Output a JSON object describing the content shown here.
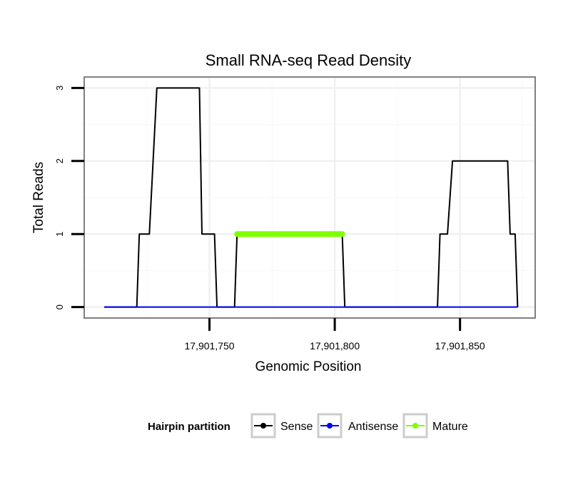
{
  "chart_data": {
    "type": "line",
    "title": "Small RNA-seq Read Density",
    "xlabel": "Genomic Position",
    "ylabel": "Total Reads",
    "xlim": [
      17901700,
      17901880
    ],
    "ylim": [
      -0.15,
      3.15
    ],
    "xticks": [
      17901750,
      17901800,
      17901850
    ],
    "xtick_labels": [
      "17,901,750",
      "17,901,800",
      "17,901,850"
    ],
    "yticks": [
      0,
      1,
      2,
      3
    ],
    "ytick_labels": [
      "0",
      "1",
      "2",
      "3"
    ],
    "grid": true,
    "legend_position": "bottom",
    "legend_title": "Hairpin partition",
    "series": [
      {
        "name": "Sense",
        "color": "#000000",
        "x": [
          17901708,
          17901721,
          17901722,
          17901726,
          17901729,
          17901746,
          17901747,
          17901752,
          17901753,
          17901760,
          17901761,
          17901803,
          17901804,
          17901841,
          17901842,
          17901845,
          17901847,
          17901869,
          17901870,
          17901872,
          17901873
        ],
        "values": [
          0,
          0,
          1,
          1,
          3,
          3,
          1,
          1,
          0,
          0,
          1,
          1,
          0,
          0,
          1,
          1,
          2,
          2,
          1,
          1,
          0
        ]
      },
      {
        "name": "Antisense",
        "color": "#0000ff",
        "x": [
          17901708,
          17901873
        ],
        "values": [
          0,
          0
        ]
      },
      {
        "name": "Mature",
        "color": "#7fff00",
        "x": [
          17901761,
          17901803
        ],
        "values": [
          1,
          1
        ]
      }
    ]
  }
}
